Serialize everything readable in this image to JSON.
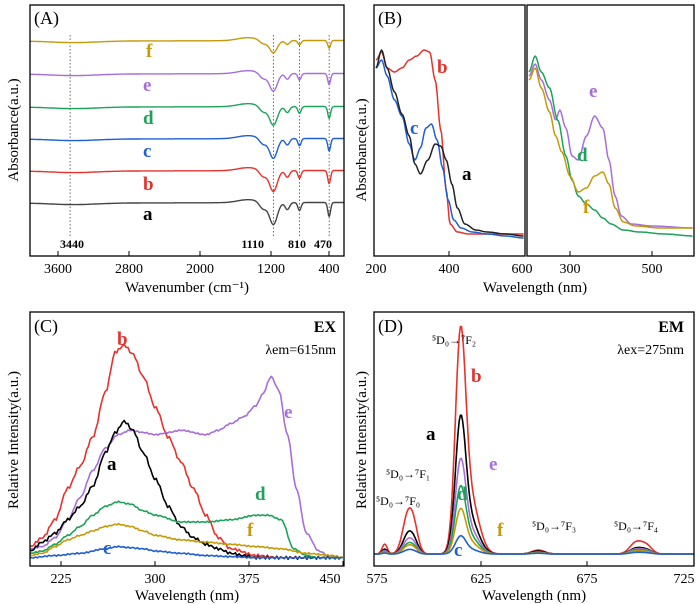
{
  "chart_data": [
    {
      "panel": "(A)",
      "type": "line",
      "xlabel": "Wavenumber (cm⁻¹)",
      "ylabel": "Absorbance(a.u.)",
      "xlim": [
        3900,
        300
      ],
      "xticks": [
        3600,
        2800,
        2000,
        1200,
        400
      ],
      "peak_labels": [
        "3440",
        "1110",
        "810",
        "470"
      ],
      "peak_positions": [
        3440,
        1110,
        810,
        470
      ],
      "series": [
        {
          "name": "f",
          "color": "#c59a08",
          "offset": 6,
          "depth": 0.55
        },
        {
          "name": "e",
          "color": "#a66ed8",
          "offset": 5,
          "depth": 0.8
        },
        {
          "name": "d",
          "color": "#1da25a",
          "offset": 4,
          "depth": 0.85
        },
        {
          "name": "c",
          "color": "#1f5fd1",
          "offset": 3,
          "depth": 0.9
        },
        {
          "name": "b",
          "color": "#e5322d",
          "offset": 2,
          "depth": 0.95
        },
        {
          "name": "a",
          "color": "#444444",
          "offset": 1,
          "depth": 1.0
        }
      ]
    },
    {
      "panel": "(B)",
      "type": "line",
      "xlabel": "Wavelength (nm)",
      "ylabel": "Absorbance(a.u.)",
      "sub_left": {
        "xlim": [
          200,
          600
        ],
        "xticks": [
          200,
          400,
          600
        ],
        "series": [
          {
            "name": "b",
            "color": "#e5322d",
            "x": [
              200,
              215,
              230,
              250,
              270,
              290,
              310,
              330,
              345,
              360,
              375,
              390,
              400,
              420,
              450,
              500,
              560,
              600
            ],
            "y": [
              0.9,
              0.94,
              0.86,
              0.84,
              0.86,
              0.9,
              0.92,
              0.95,
              0.94,
              0.8,
              0.55,
              0.25,
              0.08,
              0.04,
              0.03,
              0.03,
              0.03,
              0.03
            ]
          },
          {
            "name": "c",
            "color": "#1f5fd1",
            "x": [
              200,
              215,
              230,
              250,
              270,
              290,
              305,
              320,
              335,
              350,
              365,
              380,
              395,
              410,
              430,
              460,
              500,
              550,
              600
            ],
            "y": [
              0.86,
              0.9,
              0.82,
              0.7,
              0.62,
              0.48,
              0.4,
              0.46,
              0.56,
              0.58,
              0.5,
              0.36,
              0.2,
              0.1,
              0.06,
              0.04,
              0.03,
              0.02,
              0.01
            ]
          },
          {
            "name": "a",
            "color": "#222222",
            "x": [
              200,
              215,
              230,
              250,
              270,
              290,
              305,
              320,
              340,
              360,
              375,
              390,
              405,
              420,
              440,
              470,
              500,
              550,
              600
            ],
            "y": [
              0.86,
              0.95,
              0.86,
              0.74,
              0.63,
              0.52,
              0.38,
              0.33,
              0.4,
              0.48,
              0.47,
              0.4,
              0.28,
              0.16,
              0.08,
              0.05,
              0.04,
              0.03,
              0.02
            ]
          }
        ]
      },
      "sub_right": {
        "xlim": [
          200,
          600
        ],
        "xticks": [
          300,
          500
        ],
        "series": [
          {
            "name": "e",
            "color": "#a66ed8",
            "x": [
              200,
              215,
              230,
              250,
              265,
              275,
              290,
              305,
              320,
              340,
              360,
              380,
              395,
              410,
              425,
              450,
              500,
              600
            ],
            "y": [
              0.82,
              0.88,
              0.8,
              0.7,
              0.6,
              0.65,
              0.56,
              0.42,
              0.4,
              0.52,
              0.62,
              0.56,
              0.4,
              0.22,
              0.12,
              0.08,
              0.07,
              0.06
            ]
          },
          {
            "name": "d",
            "color": "#1da25a",
            "x": [
              200,
              215,
              230,
              250,
              270,
              290,
              305,
              320,
              340,
              360,
              380,
              400,
              430,
              470,
              530,
              600
            ],
            "y": [
              0.84,
              0.92,
              0.84,
              0.76,
              0.6,
              0.42,
              0.3,
              0.22,
              0.18,
              0.15,
              0.11,
              0.08,
              0.05,
              0.04,
              0.03,
              0.02
            ]
          },
          {
            "name": "f",
            "color": "#c59a08",
            "x": [
              200,
              215,
              230,
              250,
              265,
              280,
              300,
              320,
              340,
              360,
              380,
              395,
              410,
              430,
              460,
              520,
              600
            ],
            "y": [
              0.8,
              0.86,
              0.76,
              0.64,
              0.52,
              0.44,
              0.32,
              0.24,
              0.26,
              0.32,
              0.34,
              0.28,
              0.16,
              0.09,
              0.07,
              0.06,
              0.06
            ]
          }
        ]
      },
      "curve_labels": [
        "b",
        "c",
        "a",
        "e",
        "d",
        "f"
      ]
    },
    {
      "panel": "(C)",
      "type": "line",
      "title": "EX",
      "condition": "λem=615nm",
      "xlabel": "Wavelength (nm)",
      "ylabel": "Relative Intensity(a.u.)",
      "xlim": [
        200,
        450
      ],
      "ylim": [
        0,
        1.1
      ],
      "xticks": [
        225,
        300,
        375,
        450
      ],
      "series": [
        {
          "name": "b",
          "color": "#e5322d",
          "x": [
            200,
            210,
            220,
            230,
            240,
            250,
            260,
            268,
            275,
            282,
            290,
            300,
            310,
            320,
            330,
            340,
            350,
            360,
            380,
            400,
            420,
            450
          ],
          "y": [
            0.06,
            0.1,
            0.18,
            0.32,
            0.42,
            0.55,
            0.75,
            0.93,
            0.96,
            0.92,
            0.82,
            0.68,
            0.55,
            0.44,
            0.32,
            0.2,
            0.1,
            0.05,
            0.02,
            0.01,
            0.01,
            0.01
          ]
        },
        {
          "name": "e",
          "color": "#a66ed8",
          "x": [
            200,
            210,
            220,
            230,
            240,
            250,
            260,
            270,
            280,
            290,
            300,
            310,
            320,
            340,
            350,
            360,
            370,
            380,
            385,
            392,
            398,
            405,
            412,
            420,
            430,
            440,
            450
          ],
          "y": [
            0.05,
            0.06,
            0.1,
            0.18,
            0.28,
            0.4,
            0.5,
            0.56,
            0.58,
            0.57,
            0.56,
            0.57,
            0.58,
            0.56,
            0.58,
            0.61,
            0.64,
            0.69,
            0.74,
            0.82,
            0.76,
            0.56,
            0.32,
            0.12,
            0.04,
            0.01,
            0.01
          ]
        },
        {
          "name": "a",
          "color": "#000000",
          "x": [
            200,
            210,
            220,
            230,
            240,
            250,
            260,
            268,
            275,
            282,
            290,
            300,
            310,
            320,
            330,
            340,
            350,
            360,
            370,
            380,
            400,
            450
          ],
          "y": [
            0.04,
            0.08,
            0.12,
            0.18,
            0.24,
            0.33,
            0.48,
            0.57,
            0.62,
            0.58,
            0.48,
            0.36,
            0.24,
            0.15,
            0.1,
            0.07,
            0.05,
            0.03,
            0.02,
            0.01,
            0.01,
            0.01
          ]
        },
        {
          "name": "d",
          "color": "#1da25a",
          "x": [
            200,
            210,
            220,
            230,
            240,
            250,
            260,
            270,
            280,
            290,
            300,
            320,
            340,
            360,
            380,
            390,
            400,
            410,
            420,
            430,
            450
          ],
          "y": [
            0.03,
            0.04,
            0.07,
            0.11,
            0.15,
            0.2,
            0.24,
            0.26,
            0.25,
            0.22,
            0.2,
            0.17,
            0.17,
            0.18,
            0.2,
            0.2,
            0.18,
            0.05,
            0.02,
            0.01,
            0.01
          ]
        },
        {
          "name": "f",
          "color": "#c59a08",
          "x": [
            200,
            210,
            220,
            230,
            240,
            250,
            260,
            270,
            280,
            290,
            300,
            320,
            340,
            360,
            380,
            400,
            420,
            440,
            450
          ],
          "y": [
            0.02,
            0.03,
            0.06,
            0.09,
            0.11,
            0.13,
            0.15,
            0.16,
            0.15,
            0.13,
            0.11,
            0.09,
            0.08,
            0.07,
            0.06,
            0.05,
            0.03,
            0.02,
            0.01
          ]
        },
        {
          "name": "c",
          "color": "#1f5fd1",
          "x": [
            200,
            220,
            240,
            260,
            270,
            280,
            290,
            300,
            320,
            340,
            360,
            380,
            400,
            450
          ],
          "y": [
            0.01,
            0.02,
            0.03,
            0.05,
            0.06,
            0.055,
            0.05,
            0.04,
            0.03,
            0.02,
            0.015,
            0.01,
            0.01,
            0.01
          ]
        }
      ],
      "curve_labels": [
        "b",
        "e",
        "a",
        "d",
        "f",
        "c"
      ]
    },
    {
      "panel": "(D)",
      "type": "line",
      "title": "EM",
      "condition": "λex=275nm",
      "xlabel": "Wavelength (nm)",
      "ylabel": "Relative Intensity(a.u.)",
      "xlim": [
        575,
        725
      ],
      "ylim": [
        0,
        1.1
      ],
      "xticks": [
        575,
        625,
        675,
        725
      ],
      "transitions": [
        {
          "label": "⁵D₀→⁷F₀"
        },
        {
          "label": "⁵D₀→⁷F₁"
        },
        {
          "label": "⁵D₀→⁷F₂"
        },
        {
          "label": "⁵D₀→⁷F₃"
        },
        {
          "label": "⁵D₀→⁷F₄"
        }
      ],
      "series": [
        {
          "name": "b",
          "color": "#e5322d",
          "peak": 1.0,
          "f1": 0.2,
          "f3": 0.02,
          "f4": 0.06
        },
        {
          "name": "a",
          "color": "#000000",
          "peak": 0.61,
          "f1": 0.1,
          "f3": 0.015,
          "f4": 0.03
        },
        {
          "name": "e",
          "color": "#a66ed8",
          "peak": 0.42,
          "f1": 0.07,
          "f3": 0.01,
          "f4": 0.025
        },
        {
          "name": "d",
          "color": "#1da25a",
          "peak": 0.3,
          "f1": 0.05,
          "f3": 0.008,
          "f4": 0.02
        },
        {
          "name": "f",
          "color": "#c59a08",
          "peak": 0.2,
          "f1": 0.04,
          "f3": 0.006,
          "f4": 0.015
        },
        {
          "name": "c",
          "color": "#1f5fd1",
          "peak": 0.08,
          "f1": 0.02,
          "f3": 0.004,
          "f4": 0.008
        }
      ],
      "curve_labels": [
        "b",
        "a",
        "e",
        "d",
        "f",
        "c"
      ]
    }
  ]
}
